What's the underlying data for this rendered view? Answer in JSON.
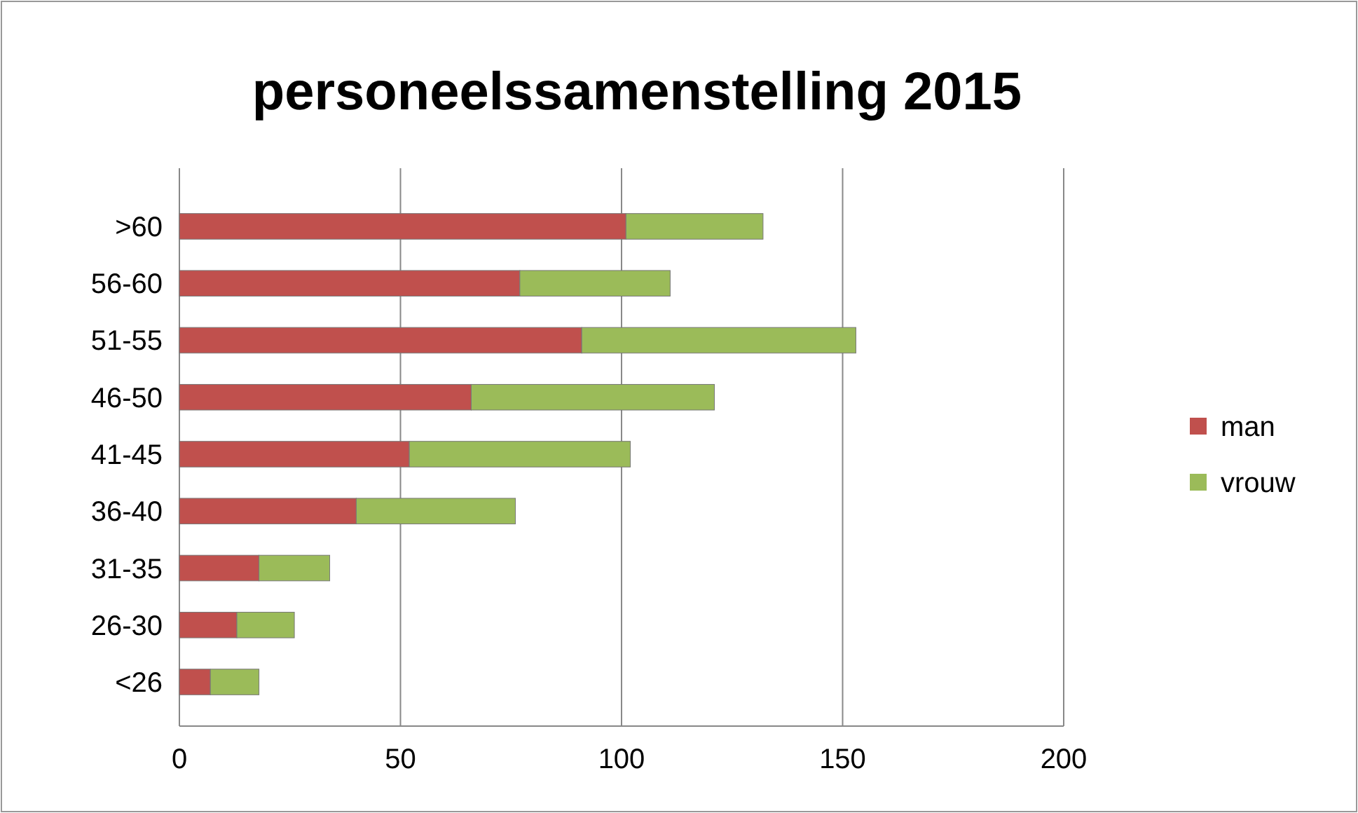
{
  "chart_data": {
    "type": "bar",
    "title": "personeelssamenstelling 2015",
    "orientation": "horizontal",
    "stacked": true,
    "categories": [
      ">60",
      "56-60",
      "51-55",
      "46-50",
      "41-45",
      "36-40",
      "31-35",
      "26-30",
      "<26"
    ],
    "series": [
      {
        "name": "man",
        "color": "#c0504d",
        "values": [
          101,
          77,
          91,
          66,
          52,
          40,
          18,
          13,
          7
        ]
      },
      {
        "name": "vrouw",
        "color": "#9bbb59",
        "values": [
          31,
          34,
          62,
          55,
          50,
          36,
          16,
          13,
          11
        ]
      }
    ],
    "xlim": [
      0,
      200
    ],
    "xticks": [
      0,
      50,
      100,
      150,
      200
    ],
    "grid": "x",
    "legend": "right"
  }
}
